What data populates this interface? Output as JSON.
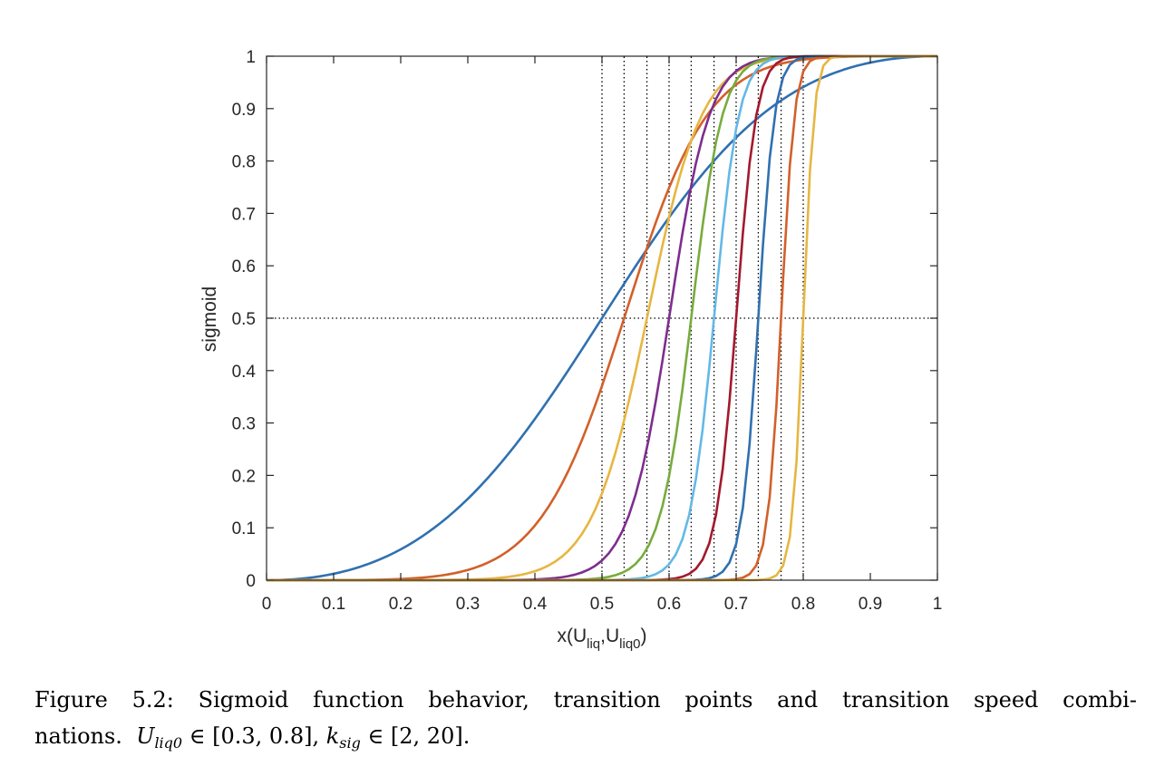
{
  "chart_data": {
    "type": "line",
    "xlabel": "x(U",
    "xlabel_sub1": "liq",
    "xlabel_mid": ",U",
    "xlabel_sub2": "liq0",
    "xlabel_end": ")",
    "ylabel": "sigmoid",
    "xlim": [
      0,
      1
    ],
    "ylim": [
      0,
      1
    ],
    "xticks": [
      0,
      0.1,
      0.2,
      0.3,
      0.4,
      0.5,
      0.6,
      0.7,
      0.8,
      0.9,
      1
    ],
    "xtick_labels": [
      "0",
      "0.1",
      "0.2",
      "0.3",
      "0.4",
      "0.5",
      "0.6",
      "0.7",
      "0.8",
      "0.9",
      "1"
    ],
    "yticks": [
      0,
      0.1,
      0.2,
      0.3,
      0.4,
      0.5,
      0.6,
      0.7,
      0.8,
      0.9,
      1
    ],
    "ytick_labels": [
      "0",
      "0.1",
      "0.2",
      "0.3",
      "0.4",
      "0.5",
      "0.6",
      "0.7",
      "0.8",
      "0.9",
      "1"
    ],
    "grid": false,
    "legend": "none",
    "reference_hline": 0.5,
    "reference_vlines": [
      0.5,
      0.533,
      0.567,
      0.6,
      0.633,
      0.667,
      0.7,
      0.733,
      0.767,
      0.8
    ],
    "series": [
      {
        "color": "#3070b0",
        "x0": 0.5,
        "k": 2
      },
      {
        "color": "#d2602a",
        "x0": 0.533,
        "k": 4
      },
      {
        "color": "#e6b642",
        "x0": 0.567,
        "k": 6
      },
      {
        "color": "#7d2e8e",
        "x0": 0.6,
        "k": 8
      },
      {
        "color": "#77ac3e",
        "x0": 0.633,
        "k": 10
      },
      {
        "color": "#64b8e6",
        "x0": 0.667,
        "k": 12
      },
      {
        "color": "#a3192d",
        "x0": 0.7,
        "k": 14
      },
      {
        "color": "#3070b0",
        "x0": 0.733,
        "k": 16
      },
      {
        "color": "#d2602a",
        "x0": 0.767,
        "k": 18
      },
      {
        "color": "#e6b642",
        "x0": 0.8,
        "k": 20
      }
    ]
  },
  "caption": {
    "line1_words": [
      "Figure",
      "5.2:",
      "Sigmoid",
      "function",
      "behavior,",
      "transition",
      "points",
      "and",
      "transition",
      "speed",
      "combi-"
    ],
    "line2_start": "nations.",
    "u_var": "U",
    "u_sub": "liq0",
    "in_symbol": "∈",
    "u_range": "[0.3, 0.8],",
    "k_var": "k",
    "k_sub": "sig",
    "k_range": "[2, 20]."
  }
}
